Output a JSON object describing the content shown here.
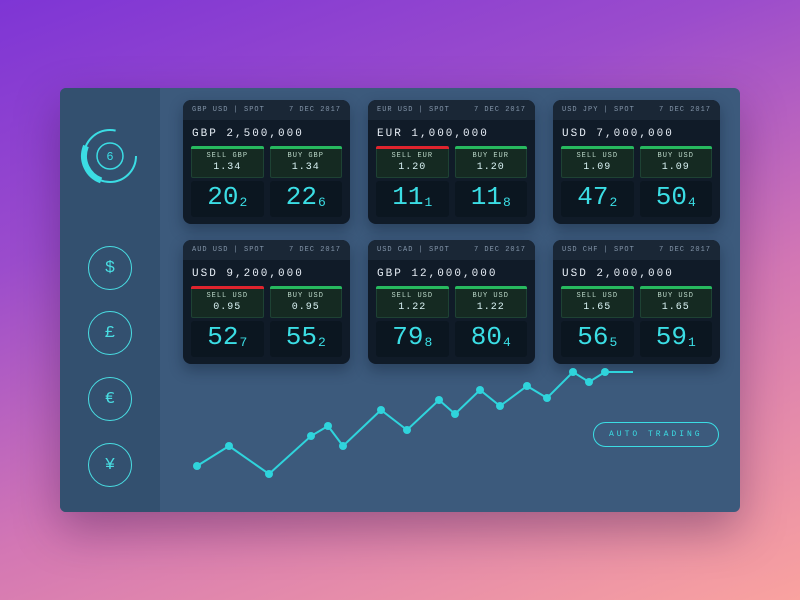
{
  "colors": {
    "accent": "#3bdde4",
    "green": "#27b95f",
    "red": "#e0242e",
    "panel": "#3c5a7c",
    "card": "#101b28"
  },
  "sidebar": {
    "logo_number": "6",
    "currencies": [
      {
        "name": "dollar",
        "symbol": "$"
      },
      {
        "name": "pound",
        "symbol": "£"
      },
      {
        "name": "euro",
        "symbol": "€"
      },
      {
        "name": "yen",
        "symbol": "¥"
      }
    ]
  },
  "cards": [
    {
      "pair": "GBP USD | SPOT",
      "date": "7 DEC 2017",
      "amount": "GBP 2,500,000",
      "sell": {
        "label": "SELL GBP",
        "price": "1.34",
        "bar_color": "#27b95f",
        "big": "20",
        "sub": "2"
      },
      "buy": {
        "label": "BUY GBP",
        "price": "1.34",
        "bar_color": "#27b95f",
        "big": "22",
        "sub": "6"
      }
    },
    {
      "pair": "EUR USD | SPOT",
      "date": "7 DEC 2017",
      "amount": "EUR 1,000,000",
      "sell": {
        "label": "SELL EUR",
        "price": "1.20",
        "bar_color": "#e0242e",
        "big": "11",
        "sub": "1"
      },
      "buy": {
        "label": "BUY EUR",
        "price": "1.20",
        "bar_color": "#27b95f",
        "big": "11",
        "sub": "8"
      }
    },
    {
      "pair": "USD JPY | SPOT",
      "date": "7 DEC 2017",
      "amount": "USD 7,000,000",
      "sell": {
        "label": "SELL USD",
        "price": "1.09",
        "bar_color": "#27b95f",
        "big": "47",
        "sub": "2"
      },
      "buy": {
        "label": "BUY USD",
        "price": "1.09",
        "bar_color": "#27b95f",
        "big": "50",
        "sub": "4"
      }
    },
    {
      "pair": "AUD USD | SPOT",
      "date": "7 DEC 2017",
      "amount": "USD 9,200,000",
      "sell": {
        "label": "SELL USD",
        "price": "0.95",
        "bar_color": "#e0242e",
        "big": "52",
        "sub": "7"
      },
      "buy": {
        "label": "BUY USD",
        "price": "0.95",
        "bar_color": "#27b95f",
        "big": "55",
        "sub": "2"
      }
    },
    {
      "pair": "USD CAD | SPOT",
      "date": "7 DEC 2017",
      "amount": "GBP 12,000,000",
      "sell": {
        "label": "SELL USD",
        "price": "1.22",
        "bar_color": "#27b95f",
        "big": "79",
        "sub": "8"
      },
      "buy": {
        "label": "BUY USD",
        "price": "1.22",
        "bar_color": "#27b95f",
        "big": "80",
        "sub": "4"
      }
    },
    {
      "pair": "USD CHF | SPOT",
      "date": "7 DEC 2017",
      "amount": "USD 2,000,000",
      "sell": {
        "label": "SELL USD",
        "price": "1.65",
        "bar_color": "#27b95f",
        "big": "56",
        "sub": "5"
      },
      "buy": {
        "label": "BUY USD",
        "price": "1.65",
        "bar_color": "#27b95f",
        "big": "59",
        "sub": "1"
      }
    }
  ],
  "footer": {
    "auto_trading_label": "AUTO TRADING"
  },
  "chart_data": {
    "type": "line",
    "title": "",
    "axes": "none",
    "grid": false,
    "legend": "none",
    "coordinate_space": "svg-pixels-y-down",
    "line_color": "#2fd4dc",
    "point_color": "#2fd4dc",
    "points": [
      [
        12,
        100
      ],
      [
        44,
        80
      ],
      [
        84,
        108
      ],
      [
        126,
        70
      ],
      [
        143,
        60
      ],
      [
        158,
        80
      ],
      [
        196,
        44
      ],
      [
        222,
        64
      ],
      [
        254,
        34
      ],
      [
        270,
        48
      ],
      [
        295,
        24
      ],
      [
        315,
        40
      ],
      [
        342,
        20
      ],
      [
        362,
        32
      ],
      [
        388,
        6
      ],
      [
        404,
        16
      ],
      [
        420,
        6
      ],
      [
        448,
        6
      ]
    ]
  }
}
